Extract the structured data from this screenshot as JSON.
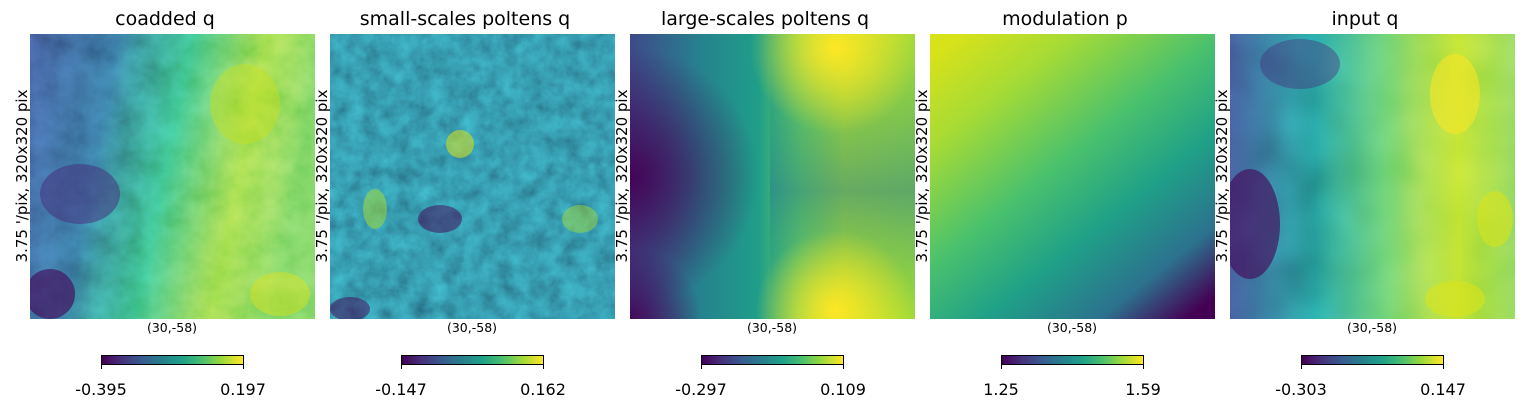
{
  "colormap": "viridis",
  "colormap_stops": [
    "#440154",
    "#46327e",
    "#365c8d",
    "#277f8e",
    "#1fa187",
    "#4ac16d",
    "#a0da39",
    "#fde725"
  ],
  "chart_data": [
    {
      "type": "heatmap",
      "title": "coadded q",
      "side_label": "3.75 '/pix,   320x320 pix",
      "center_label": "(30,-58)",
      "colorbar": {
        "min": -0.395,
        "max": 0.197,
        "min_label": "-0.395",
        "max_label": "0.197"
      }
    },
    {
      "type": "heatmap",
      "title": "small-scales poltens q",
      "side_label": "3.75 '/pix,   320x320 pix",
      "center_label": "(30,-58)",
      "colorbar": {
        "min": -0.147,
        "max": 0.162,
        "min_label": "-0.147",
        "max_label": "0.162"
      }
    },
    {
      "type": "heatmap",
      "title": "large-scales poltens q",
      "side_label": "3.75 '/pix,   320x320 pix",
      "center_label": "(30,-58)",
      "colorbar": {
        "min": -0.297,
        "max": 0.109,
        "min_label": "-0.297",
        "max_label": "0.109"
      }
    },
    {
      "type": "heatmap",
      "title": "modulation p",
      "side_label": "3.75 '/pix,   320x320 pix",
      "center_label": "(30,-58)",
      "colorbar": {
        "min": 1.25,
        "max": 1.59,
        "min_label": "1.25",
        "max_label": "1.59"
      }
    },
    {
      "type": "heatmap",
      "title": "input  q",
      "side_label": "3.75 '/pix,   320x320 pix",
      "center_label": "(30,-58)",
      "colorbar": {
        "min": -0.303,
        "max": 0.147,
        "min_label": "-0.303",
        "max_label": "0.147"
      }
    }
  ]
}
